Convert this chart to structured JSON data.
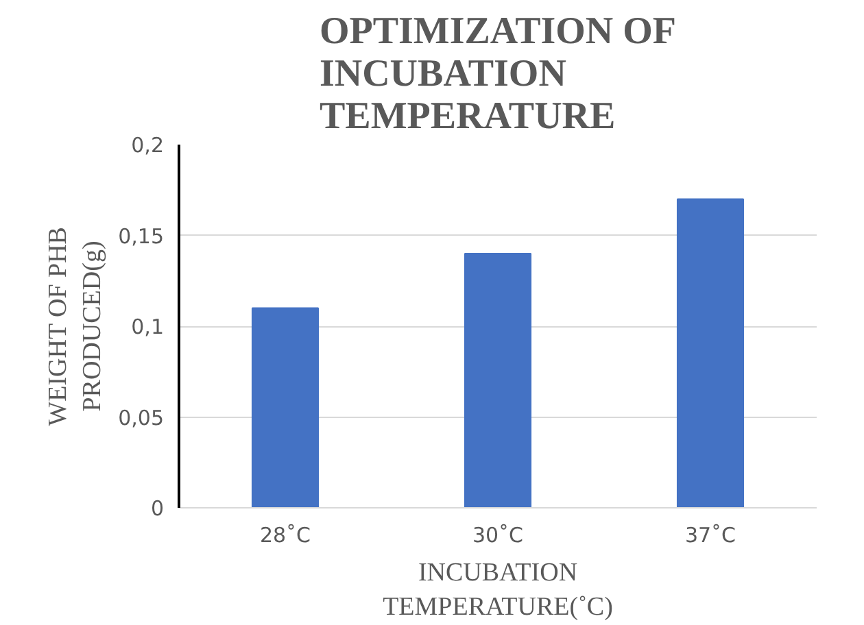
{
  "chart_data": {
    "type": "bar",
    "title": "OPTIMIZATION OF\nINCUBATION\nTEMPERATURE",
    "xlabel": "INCUBATION\nTEMPERATURE(˚C)",
    "ylabel": "WEIGHT OF PHB\nPRODUCED(g)",
    "categories": [
      "28˚C",
      "30˚C",
      "37˚C"
    ],
    "values": [
      0.11,
      0.14,
      0.17
    ],
    "color": "#4472c4",
    "ylim": [
      0,
      0.2
    ],
    "yticks": [
      {
        "value": 0,
        "label": "0"
      },
      {
        "value": 0.05,
        "label": "0,05"
      },
      {
        "value": 0.1,
        "label": "0,1"
      },
      {
        "value": 0.15,
        "label": "0,15"
      },
      {
        "value": 0.2,
        "label": "0,2"
      }
    ],
    "grid": "y"
  }
}
